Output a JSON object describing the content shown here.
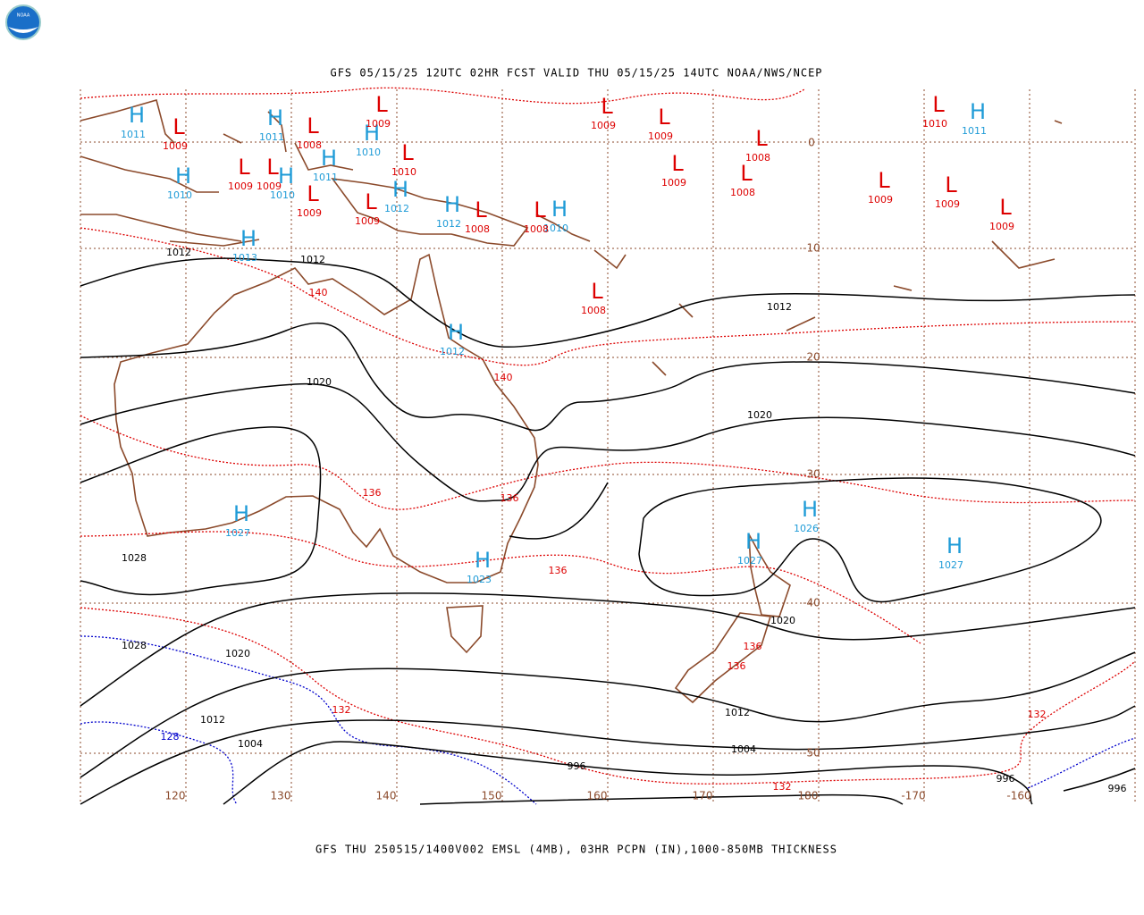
{
  "header": {
    "logo": "NOAA",
    "title": "GFS 05/15/25 12UTC 02HR FCST VALID THU 05/15/25 14UTC NOAA/NWS/NCEP"
  },
  "footer": {
    "caption": "GFS THU 250515/1400V002 EMSL (4MB), 03HR PCPN (IN),1000-850MB THICKNESS"
  },
  "map": {
    "high_symbol": "H",
    "low_symbol": "L",
    "highs": [
      "1011",
      "1011",
      "1010",
      "1011",
      "1010",
      "1010",
      "1012",
      "1012",
      "1010",
      "1013",
      "1012",
      "1027",
      "1023",
      "1027",
      "1026",
      "1027",
      "1011"
    ],
    "lows": [
      "1009",
      "1009",
      "1009",
      "1008",
      "1009",
      "1009",
      "1010",
      "1009",
      "1008",
      "1008",
      "1009",
      "1009",
      "1009",
      "1008",
      "1008",
      "1008",
      "1010",
      "1009",
      "1009",
      "1009"
    ],
    "isobar_labels": [
      "1012",
      "1012",
      "1012",
      "1020",
      "1020",
      "1028",
      "1028",
      "1020",
      "1020",
      "1012",
      "1012",
      "1004",
      "1004",
      "996",
      "996",
      "996"
    ],
    "thickness_labels": [
      "140",
      "140",
      "136",
      "136",
      "136",
      "136",
      "136",
      "132",
      "132",
      "132",
      "128"
    ],
    "latitude_labels": [
      "0",
      "-10",
      "-20",
      "-30",
      "-40",
      "-50"
    ],
    "longitude_labels": [
      "120",
      "130",
      "140",
      "150",
      "160",
      "170",
      "180",
      "-170",
      "-160"
    ]
  }
}
